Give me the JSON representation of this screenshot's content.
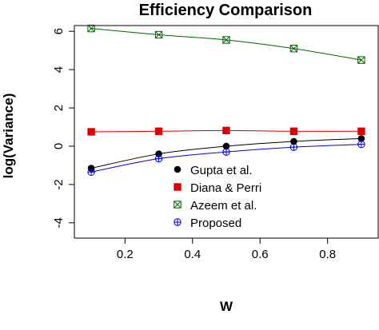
{
  "chart_data": {
    "type": "line",
    "title": "Efficiency Comparison",
    "xlabel": "W",
    "ylabel": "log(Variance)",
    "xlim": [
      0.05,
      0.95
    ],
    "ylim": [
      -4.8,
      6.3
    ],
    "xticks": [
      0.2,
      0.4,
      0.6,
      0.8
    ],
    "yticks": [
      -4,
      -2,
      0,
      2,
      4,
      6
    ],
    "x": [
      0.1,
      0.3,
      0.5,
      0.7,
      0.9
    ],
    "grid": false,
    "legend_position": "center",
    "series": [
      {
        "name": "Gupta et al.",
        "values": [
          -1.15,
          -0.4,
          0.0,
          0.25,
          0.4
        ],
        "color": "#000000",
        "marker": "filled-circle"
      },
      {
        "name": "Diana & Perri",
        "values": [
          0.75,
          0.78,
          0.82,
          0.78,
          0.78
        ],
        "color": "#e00000",
        "marker": "filled-square"
      },
      {
        "name": "Azeem et al.",
        "values": [
          6.15,
          5.82,
          5.55,
          5.1,
          4.5
        ],
        "color": "#006400",
        "marker": "square-x"
      },
      {
        "name": "Proposed",
        "values": [
          -1.35,
          -0.65,
          -0.3,
          -0.05,
          0.1
        ],
        "color": "#0000dd",
        "marker": "circle-plus"
      }
    ]
  }
}
